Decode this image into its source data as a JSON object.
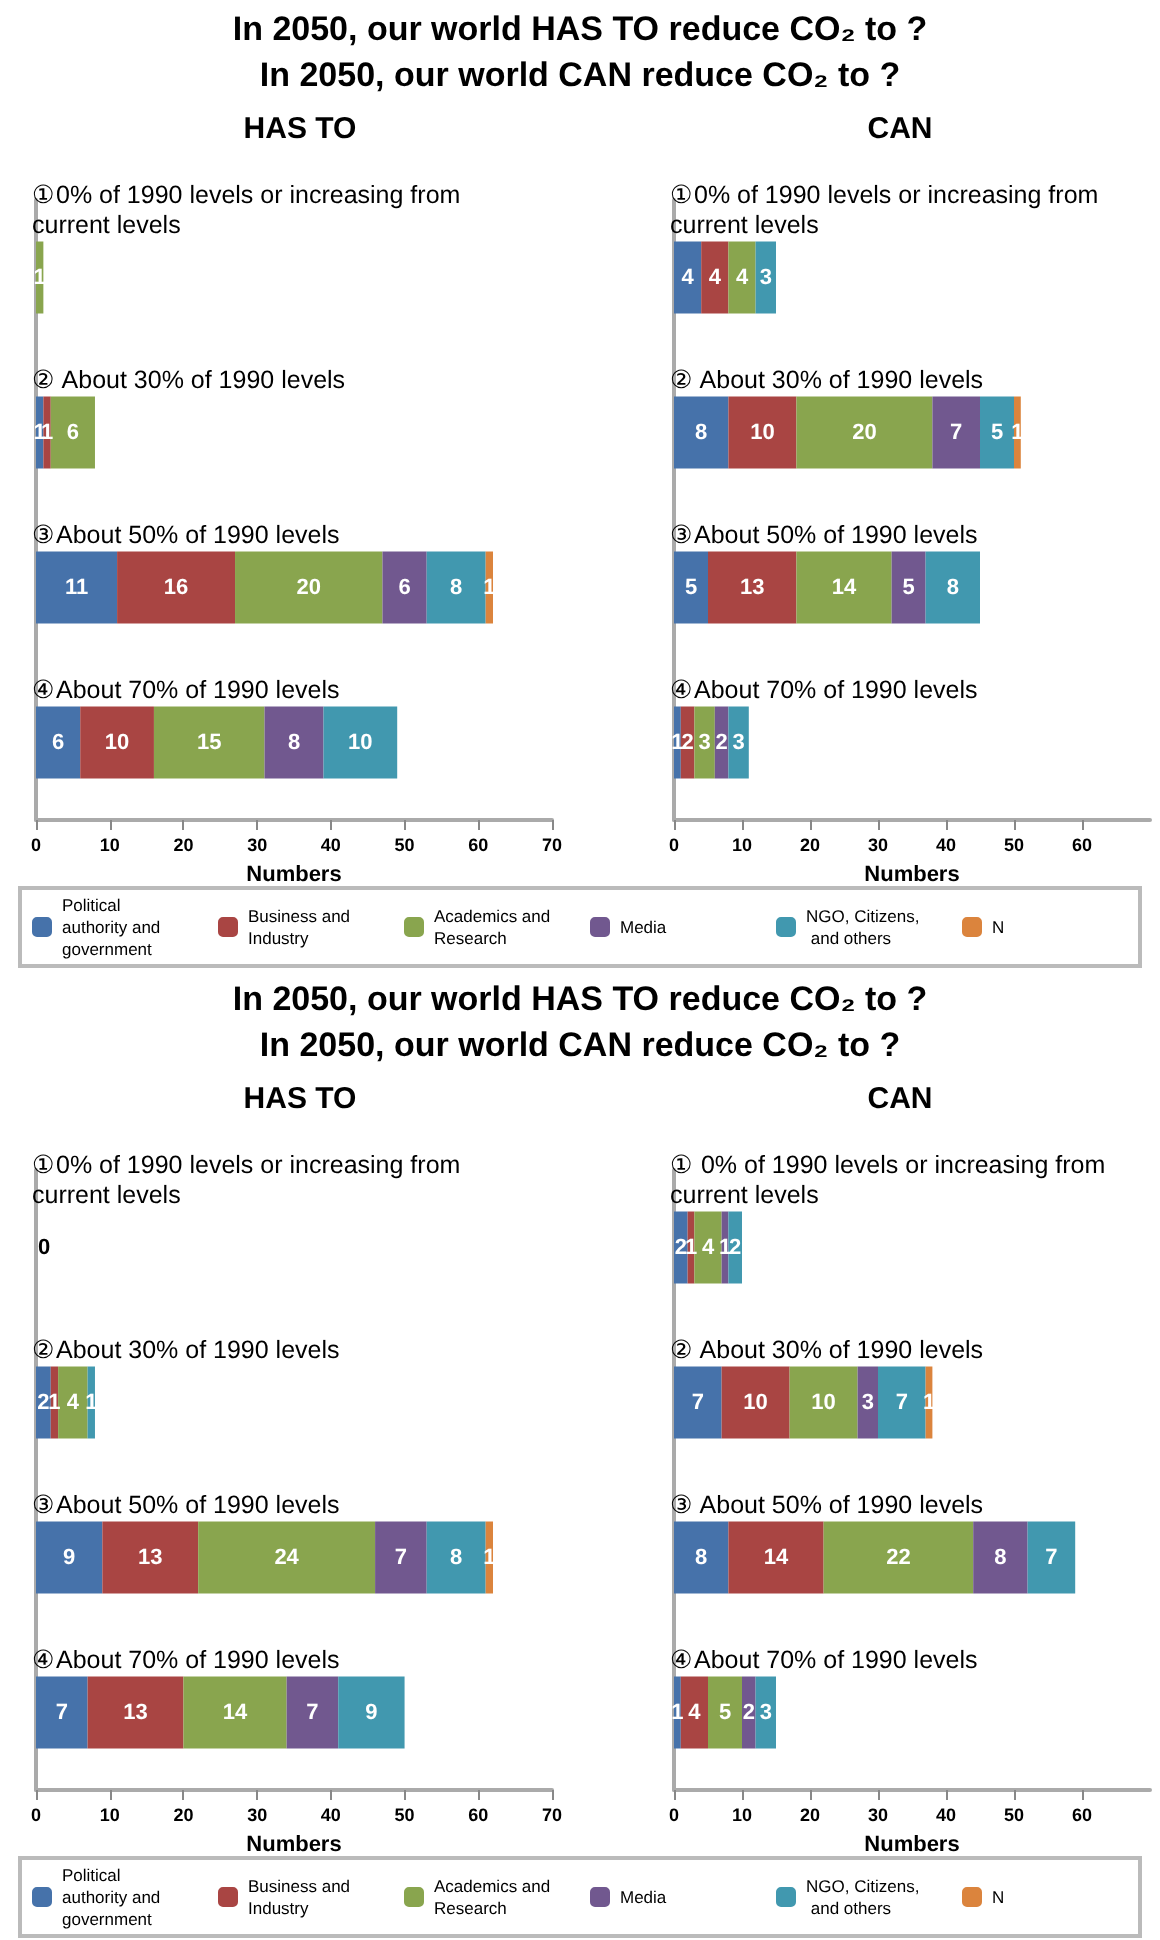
{
  "chart_data": [
    {
      "type": "bar",
      "orientation": "horizontal",
      "stacked": true,
      "data_labels": true,
      "title": "HAS TO",
      "annotations": [
        "In 2050, our world HAS TO reduce CO₂ to ?",
        "In 2050, our world CAN reduce CO₂ to ?"
      ],
      "categories": [
        "①0% of 1990 levels or increasing from current levels",
        "② About 30% of 1990 levels",
        "③About 50% of 1990 levels",
        "④About 70% of 1990 levels"
      ],
      "xlabel": "Numbers",
      "xlim": [
        0,
        70
      ],
      "xticks": [
        0,
        10,
        20,
        30,
        40,
        50,
        60,
        70
      ],
      "legend": "bottom",
      "series": [
        {
          "name": "Political authority and government",
          "color": "#4672aa",
          "values": [
            null,
            1,
            11,
            6
          ]
        },
        {
          "name": "Business and Industry",
          "color": "#a94543",
          "values": [
            null,
            1,
            16,
            10
          ]
        },
        {
          "name": "Academics and Research",
          "color": "#89a54e",
          "values": [
            1,
            6,
            20,
            15
          ]
        },
        {
          "name": "Media",
          "color": "#71588f",
          "values": [
            null,
            null,
            6,
            8
          ]
        },
        {
          "name": "NGO, Citizens, and others",
          "color": "#4198af",
          "values": [
            null,
            null,
            8,
            10
          ]
        },
        {
          "name": "N",
          "color": "#db843d",
          "values": [
            null,
            null,
            1,
            null
          ]
        }
      ]
    },
    {
      "type": "bar",
      "orientation": "horizontal",
      "stacked": true,
      "data_labels": true,
      "title": "CAN",
      "categories": [
        "①0% of 1990 levels or increasing from current levels",
        "② About 30% of 1990 levels",
        "③About 50% of 1990 levels",
        "④About 70% of 1990 levels"
      ],
      "xlabel": "Numbers",
      "xlim": [
        0,
        70
      ],
      "xticks": [
        0,
        10,
        20,
        30,
        40,
        50,
        60
      ],
      "series": [
        {
          "color": "#4672aa",
          "values": [
            4,
            8,
            5,
            1
          ]
        },
        {
          "color": "#a94543",
          "values": [
            4,
            10,
            13,
            2
          ]
        },
        {
          "color": "#89a54e",
          "values": [
            4,
            20,
            14,
            3
          ]
        },
        {
          "color": "#71588f",
          "values": [
            null,
            7,
            5,
            2
          ]
        },
        {
          "color": "#4198af",
          "values": [
            3,
            5,
            8,
            3
          ]
        },
        {
          "color": "#db843d",
          "values": [
            null,
            1,
            null,
            null
          ]
        }
      ]
    },
    {
      "type": "bar",
      "orientation": "horizontal",
      "stacked": true,
      "data_labels": true,
      "title": "HAS TO",
      "annotations": [
        "In 2050, our world HAS TO reduce CO₂ to ?",
        "In 2050, our world CAN reduce CO₂ to ?"
      ],
      "categories": [
        "①0% of 1990 levels or increasing from current levels",
        "②About 30% of 1990 levels",
        "③About 50% of 1990 levels",
        "④About 70% of 1990 levels"
      ],
      "xlabel": "Numbers",
      "xlim": [
        0,
        70
      ],
      "xticks": [
        0,
        10,
        20,
        30,
        40,
        50,
        60,
        70
      ],
      "legend": "bottom",
      "series": [
        {
          "name": "Political authority and government",
          "color": "#4672aa",
          "values": [
            0,
            2,
            9,
            7
          ]
        },
        {
          "name": "Business and Industry",
          "color": "#a94543",
          "values": [
            null,
            1,
            13,
            13
          ]
        },
        {
          "name": "Academics and Research",
          "color": "#89a54e",
          "values": [
            null,
            4,
            24,
            14
          ]
        },
        {
          "name": "Media",
          "color": "#71588f",
          "values": [
            null,
            null,
            7,
            7
          ]
        },
        {
          "name": "NGO, Citizens, and others",
          "color": "#4198af",
          "values": [
            null,
            1,
            8,
            9
          ]
        },
        {
          "name": "N",
          "color": "#db843d",
          "values": [
            null,
            null,
            1,
            null
          ]
        }
      ]
    },
    {
      "type": "bar",
      "orientation": "horizontal",
      "stacked": true,
      "data_labels": true,
      "title": "CAN",
      "categories": [
        "① 0% of 1990 levels or increasing from current levels",
        "② About 30% of 1990 levels",
        "③ About 50% of 1990 levels",
        "④About 70% of 1990 levels"
      ],
      "xlabel": "Numbers",
      "xlim": [
        0,
        70
      ],
      "xticks": [
        0,
        10,
        20,
        30,
        40,
        50,
        60
      ],
      "series": [
        {
          "color": "#4672aa",
          "values": [
            2,
            7,
            8,
            1
          ]
        },
        {
          "color": "#a94543",
          "values": [
            1,
            10,
            14,
            4
          ]
        },
        {
          "color": "#89a54e",
          "values": [
            4,
            10,
            22,
            5
          ]
        },
        {
          "color": "#71588f",
          "values": [
            1,
            3,
            8,
            2
          ]
        },
        {
          "color": "#4198af",
          "values": [
            2,
            7,
            7,
            3
          ]
        },
        {
          "color": "#db843d",
          "values": [
            null,
            1,
            null,
            null
          ]
        }
      ]
    }
  ]
}
